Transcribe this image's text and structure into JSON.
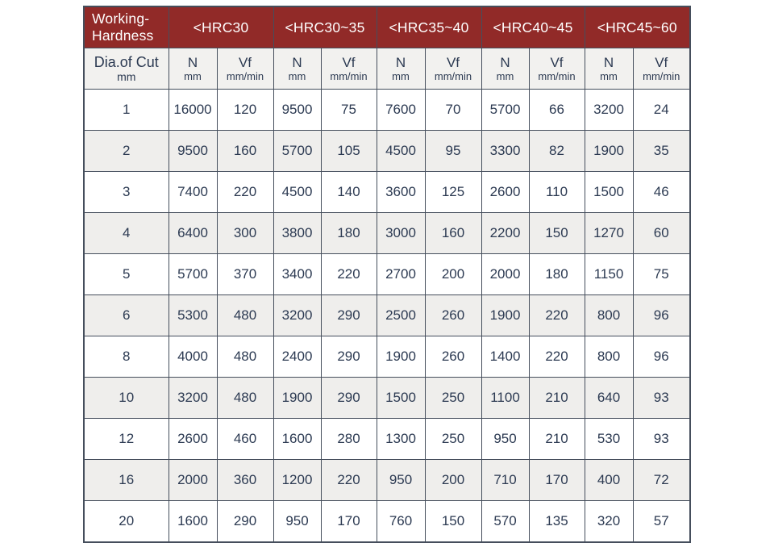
{
  "colors": {
    "header_bg": "#912a28",
    "header_text": "#ffffff",
    "border": "#454e5c",
    "cell_text": "#2c3a52",
    "alt_row_bg": "#efeeec",
    "subheader_bg": "#f2f1ef"
  },
  "chart_data": {
    "type": "table",
    "corner_header": {
      "line1": "Working-",
      "line2": "Hardness"
    },
    "row_header": {
      "label": "Dia.of Cut",
      "unit": "mm"
    },
    "groups": [
      "<HRC30",
      "<HRC30~35",
      "<HRC35~40",
      "<HRC40~45",
      "<HRC45~60"
    ],
    "sub_headers": {
      "n_label": "N",
      "n_unit": "mm",
      "vf_label": "Vf",
      "vf_unit": "mm/min"
    },
    "rows": [
      {
        "dia": "1",
        "values": [
          16000,
          120,
          9500,
          75,
          7600,
          70,
          5700,
          66,
          3200,
          24
        ]
      },
      {
        "dia": "2",
        "values": [
          9500,
          160,
          5700,
          105,
          4500,
          95,
          3300,
          82,
          1900,
          35
        ]
      },
      {
        "dia": "3",
        "values": [
          7400,
          220,
          4500,
          140,
          3600,
          125,
          2600,
          110,
          1500,
          46
        ]
      },
      {
        "dia": "4",
        "values": [
          6400,
          300,
          3800,
          180,
          3000,
          160,
          2200,
          150,
          1270,
          60
        ]
      },
      {
        "dia": "5",
        "values": [
          5700,
          370,
          3400,
          220,
          2700,
          200,
          2000,
          180,
          1150,
          75
        ]
      },
      {
        "dia": "6",
        "values": [
          5300,
          480,
          3200,
          290,
          2500,
          260,
          1900,
          220,
          800,
          96
        ]
      },
      {
        "dia": "8",
        "values": [
          4000,
          480,
          2400,
          290,
          1900,
          260,
          1400,
          220,
          800,
          96
        ]
      },
      {
        "dia": "10",
        "values": [
          3200,
          480,
          1900,
          290,
          1500,
          250,
          1100,
          210,
          640,
          93
        ]
      },
      {
        "dia": "12",
        "values": [
          2600,
          460,
          1600,
          280,
          1300,
          250,
          950,
          210,
          530,
          93
        ]
      },
      {
        "dia": "16",
        "values": [
          2000,
          360,
          1200,
          220,
          950,
          200,
          710,
          170,
          400,
          72
        ]
      },
      {
        "dia": "20",
        "values": [
          1600,
          290,
          950,
          170,
          760,
          150,
          570,
          135,
          320,
          57
        ]
      }
    ]
  }
}
